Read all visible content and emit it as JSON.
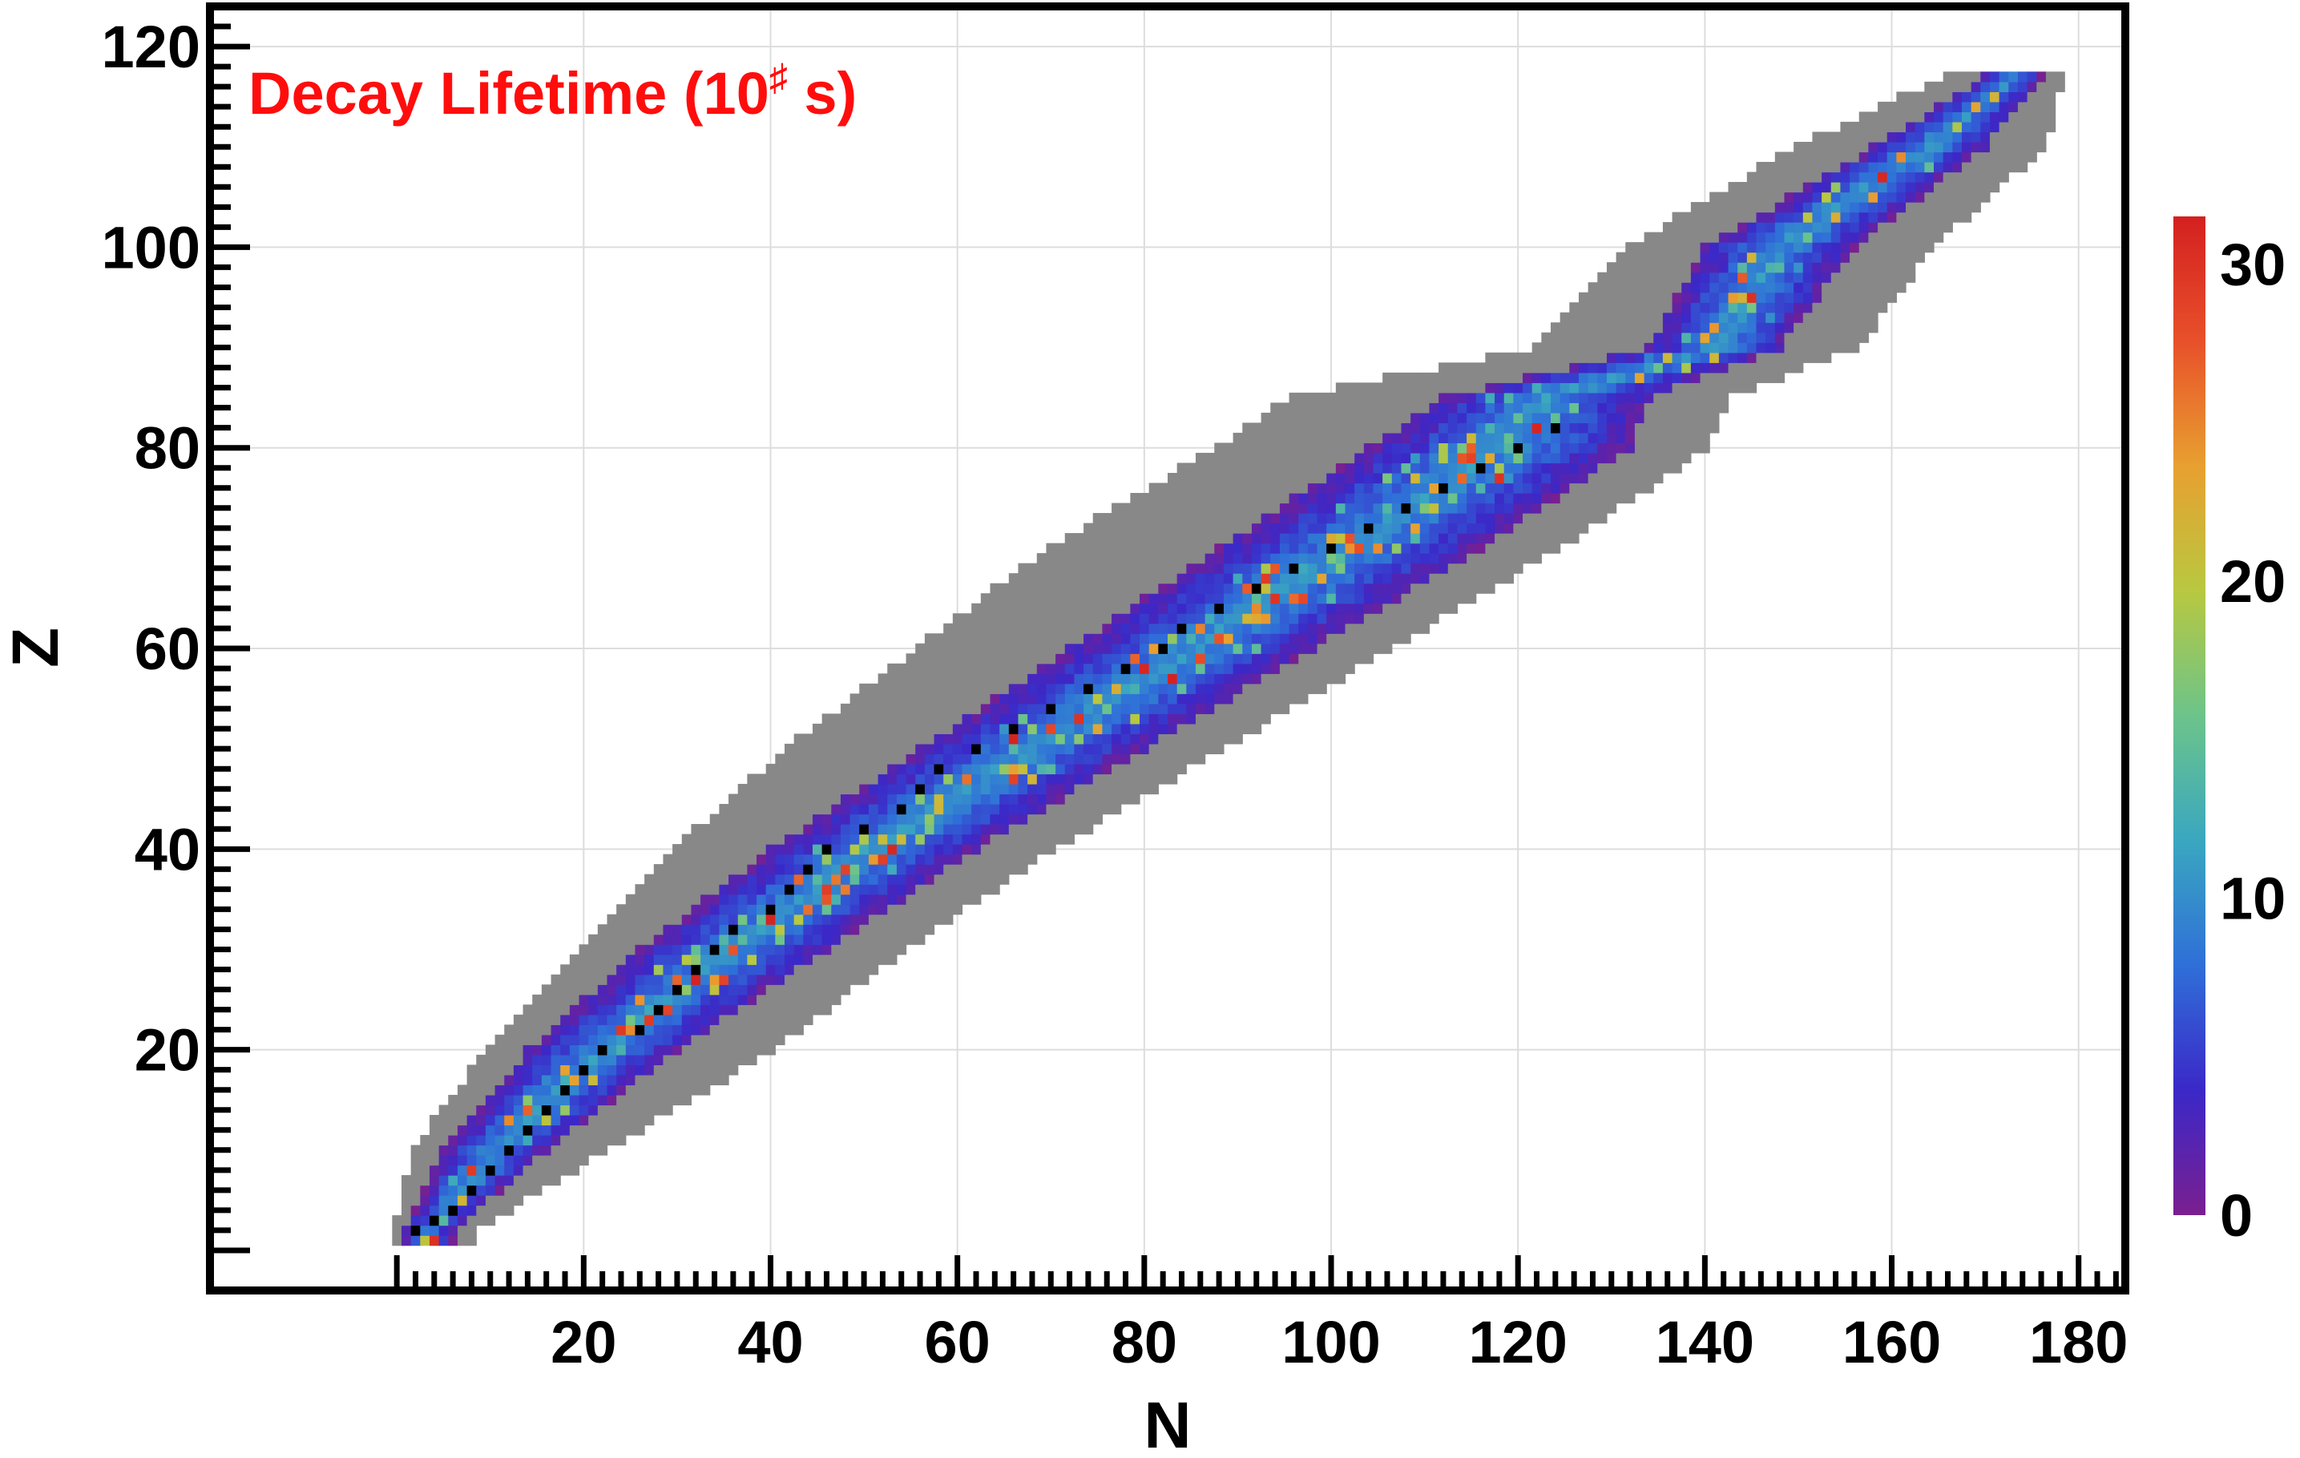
{
  "chart_data": {
    "type": "heatmap",
    "title": "Decay Lifetime (10",
    "title_exponent": "♯",
    "title_suffix": " s)",
    "title_color": "#ff0d0d",
    "xlabel": "N",
    "ylabel": "Z",
    "xlim": [
      -20,
      185
    ],
    "ylim": [
      -4,
      124
    ],
    "x_ticks": [
      20,
      40,
      60,
      80,
      100,
      120,
      140,
      160,
      180
    ],
    "y_ticks": [
      20,
      40,
      60,
      80,
      100,
      120
    ],
    "x_tick_labels": [
      "20",
      "40",
      "60",
      "80",
      "100",
      "120",
      "140",
      "160",
      "180"
    ],
    "y_tick_labels": [
      "20",
      "40",
      "60",
      "80",
      "100",
      "120"
    ],
    "grid": true,
    "colorbar": {
      "range": [
        0,
        31.5
      ],
      "ticks": [
        0,
        10,
        20,
        30
      ],
      "tick_labels": [
        "0",
        "10",
        "20",
        "30"
      ],
      "colormap": [
        "#7a1f8f",
        "#3b28c8",
        "#2f6fd8",
        "#3aa7c0",
        "#6cc48a",
        "#b8c840",
        "#e8a030",
        "#e8502a",
        "#d42020"
      ]
    },
    "colors": {
      "unknown_region": "#888888",
      "stable_nuclei": "#000000",
      "grid": "#dddddd"
    },
    "stable_valley": [
      [
        2,
        2
      ],
      [
        4,
        3
      ],
      [
        6,
        4
      ],
      [
        8,
        6
      ],
      [
        10,
        8
      ],
      [
        12,
        10
      ],
      [
        14,
        12
      ],
      [
        16,
        14
      ],
      [
        18,
        16
      ],
      [
        20,
        18
      ],
      [
        22,
        20
      ],
      [
        26,
        22
      ],
      [
        28,
        24
      ],
      [
        30,
        26
      ],
      [
        32,
        28
      ],
      [
        34,
        30
      ],
      [
        36,
        32
      ],
      [
        40,
        34
      ],
      [
        42,
        36
      ],
      [
        44,
        38
      ],
      [
        46,
        40
      ],
      [
        50,
        42
      ],
      [
        54,
        44
      ],
      [
        56,
        46
      ],
      [
        58,
        48
      ],
      [
        62,
        50
      ],
      [
        66,
        52
      ],
      [
        70,
        54
      ],
      [
        74,
        56
      ],
      [
        78,
        58
      ],
      [
        82,
        60
      ],
      [
        84,
        62
      ],
      [
        88,
        64
      ],
      [
        92,
        66
      ],
      [
        96,
        68
      ],
      [
        100,
        70
      ],
      [
        104,
        72
      ],
      [
        108,
        74
      ],
      [
        112,
        76
      ],
      [
        116,
        78
      ],
      [
        120,
        80
      ],
      [
        124,
        82
      ]
    ],
    "region_bounds": [
      {
        "Z": 2,
        "known": [
          1,
          6
        ],
        "theory": [
          0,
          8
        ]
      },
      {
        "Z": 10,
        "known": [
          5,
          16
        ],
        "theory": [
          2,
          22
        ]
      },
      {
        "Z": 20,
        "known": [
          14,
          30
        ],
        "theory": [
          10,
          40
        ]
      },
      {
        "Z": 30,
        "known": [
          26,
          46
        ],
        "theory": [
          20,
          54
        ]
      },
      {
        "Z": 40,
        "known": [
          40,
          62
        ],
        "theory": [
          30,
          70
        ]
      },
      {
        "Z": 50,
        "known": [
          56,
          80
        ],
        "theory": [
          42,
          88
        ]
      },
      {
        "Z": 60,
        "known": [
          72,
          98
        ],
        "theory": [
          56,
          106
        ]
      },
      {
        "Z": 70,
        "known": [
          88,
          116
        ],
        "theory": [
          70,
          124
        ]
      },
      {
        "Z": 80,
        "known": [
          104,
          132
        ],
        "theory": [
          88,
          140
        ]
      },
      {
        "Z": 85,
        "known": [
          112,
          134
        ],
        "theory": [
          96,
          142
        ]
      },
      {
        "Z": 90,
        "known": [
          134,
          148
        ],
        "theory": [
          122,
          156
        ]
      },
      {
        "Z": 100,
        "known": [
          140,
          156
        ],
        "theory": [
          132,
          164
        ]
      },
      {
        "Z": 110,
        "known": [
          158,
          170
        ],
        "theory": [
          150,
          176
        ]
      },
      {
        "Z": 117,
        "known": [
          170,
          176
        ],
        "theory": [
          166,
          178
        ]
      }
    ],
    "lifetime_profile": {
      "description": "log10 lifetime peaks (~20-31) near the stability line and falls to ~0 at the edges of the known region",
      "peak_value": 31.5,
      "edge_value": 0
    }
  }
}
